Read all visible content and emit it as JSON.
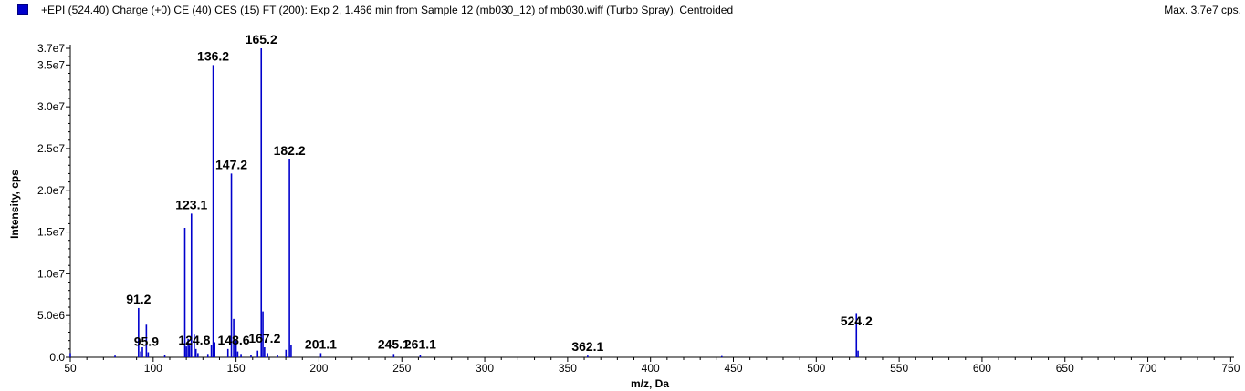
{
  "header": {
    "title": "+EPI (524.40) Charge (+0) CE (40) CES (15) FT (200): Exp 2, 1.466 min from Sample 12 (mb030_12) of mb030.wiff (Turbo Spray), Centroided",
    "max_label": "Max. 3.7e7 cps."
  },
  "colors": {
    "series": "#0000cc",
    "legend": "#0000cc"
  },
  "chart_data": {
    "type": "bar",
    "xlabel": "m/z, Da",
    "ylabel": "Intensity, cps",
    "xlim": [
      50,
      752
    ],
    "ylim": [
      0,
      37000000
    ],
    "grid": false,
    "x_ticks": [
      50,
      100,
      150,
      200,
      250,
      300,
      350,
      400,
      450,
      500,
      550,
      600,
      650,
      700,
      750
    ],
    "x_tick_labels": [
      "50",
      "100",
      "150",
      "200",
      "250",
      "300",
      "350",
      "400",
      "450",
      "500",
      "550",
      "600",
      "650",
      "700",
      "750"
    ],
    "y_ticks": [
      0,
      5000000,
      10000000,
      15000000,
      20000000,
      25000000,
      30000000,
      35000000,
      37000000
    ],
    "y_tick_labels": [
      "0.0",
      "5.0e6",
      "1.0e7",
      "1.5e7",
      "2.0e7",
      "2.5e7",
      "3.0e7",
      "3.5e7",
      "3.7e7"
    ],
    "peaks": [
      {
        "x": 50.0,
        "y": 500000
      },
      {
        "x": 77.0,
        "y": 200000
      },
      {
        "x": 91.2,
        "y": 5900000
      },
      {
        "x": 92.5,
        "y": 700000
      },
      {
        "x": 93.5,
        "y": 1200000
      },
      {
        "x": 95.9,
        "y": 3900000
      },
      {
        "x": 97.0,
        "y": 600000
      },
      {
        "x": 107.0,
        "y": 300000
      },
      {
        "x": 119.1,
        "y": 15500000
      },
      {
        "x": 120.0,
        "y": 1300000
      },
      {
        "x": 121.1,
        "y": 2200000
      },
      {
        "x": 122.0,
        "y": 1400000
      },
      {
        "x": 123.1,
        "y": 17200000
      },
      {
        "x": 124.8,
        "y": 2700000
      },
      {
        "x": 125.8,
        "y": 1000000
      },
      {
        "x": 127.0,
        "y": 500000
      },
      {
        "x": 133.0,
        "y": 400000
      },
      {
        "x": 135.1,
        "y": 1500000
      },
      {
        "x": 136.2,
        "y": 35000000
      },
      {
        "x": 137.1,
        "y": 1800000
      },
      {
        "x": 145.1,
        "y": 1000000
      },
      {
        "x": 147.2,
        "y": 22000000
      },
      {
        "x": 148.6,
        "y": 4600000
      },
      {
        "x": 150.0,
        "y": 2000000
      },
      {
        "x": 151.0,
        "y": 700000
      },
      {
        "x": 153.0,
        "y": 400000
      },
      {
        "x": 159.0,
        "y": 300000
      },
      {
        "x": 163.0,
        "y": 800000
      },
      {
        "x": 165.2,
        "y": 37000000
      },
      {
        "x": 166.2,
        "y": 5500000
      },
      {
        "x": 167.2,
        "y": 1200000
      },
      {
        "x": 169.0,
        "y": 500000
      },
      {
        "x": 175.0,
        "y": 300000
      },
      {
        "x": 180.1,
        "y": 900000
      },
      {
        "x": 182.2,
        "y": 23700000
      },
      {
        "x": 183.2,
        "y": 1500000
      },
      {
        "x": 201.1,
        "y": 500000
      },
      {
        "x": 245.1,
        "y": 400000
      },
      {
        "x": 261.1,
        "y": 300000
      },
      {
        "x": 362.1,
        "y": 200000
      },
      {
        "x": 443.0,
        "y": 150000
      },
      {
        "x": 524.2,
        "y": 5300000
      },
      {
        "x": 525.2,
        "y": 800000
      }
    ],
    "annotations": [
      {
        "label": "91.2",
        "x": 91.2,
        "y": 5900000
      },
      {
        "label": "95.9",
        "x": 95.9,
        "y": 800000
      },
      {
        "label": "123.1",
        "x": 123.1,
        "y": 17200000
      },
      {
        "label": "124.8",
        "x": 124.8,
        "y": 1000000
      },
      {
        "label": "136.2",
        "x": 136.2,
        "y": 35000000
      },
      {
        "label": "147.2",
        "x": 147.2,
        "y": 22000000
      },
      {
        "label": "148.6",
        "x": 148.6,
        "y": 1000000
      },
      {
        "label": "165.2",
        "x": 165.2,
        "y": 37000000
      },
      {
        "label": "167.2",
        "x": 167.2,
        "y": 1200000
      },
      {
        "label": "182.2",
        "x": 182.2,
        "y": 23700000
      },
      {
        "label": "201.1",
        "x": 201.1,
        "y": 500000
      },
      {
        "label": "245.1",
        "x": 245.1,
        "y": 500000
      },
      {
        "label": "261.1",
        "x": 261.1,
        "y": 500000
      },
      {
        "label": "362.1",
        "x": 362.1,
        "y": 200000
      },
      {
        "label": "524.2",
        "x": 524.2,
        "y": 3300000
      }
    ]
  }
}
